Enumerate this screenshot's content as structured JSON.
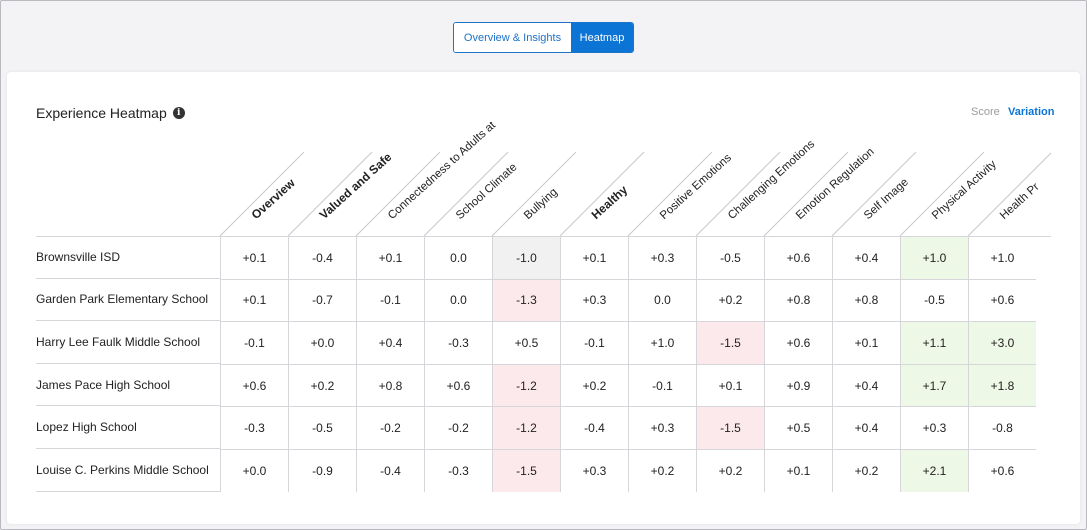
{
  "tabs": {
    "overview": "Overview & Insights",
    "heatmap": "Heatmap"
  },
  "card": {
    "title": "Experience Heatmap",
    "info_icon": "info-icon"
  },
  "mode": {
    "score": "Score",
    "variation": "Variation"
  },
  "columns": [
    {
      "label": "Overview",
      "bold": true
    },
    {
      "label": "Valued and Safe",
      "bold": true
    },
    {
      "label": "Connectedness to Adults at",
      "bold": false
    },
    {
      "label": "School Climate",
      "bold": false
    },
    {
      "label": "Bullying",
      "bold": false
    },
    {
      "label": "Healthy",
      "bold": true
    },
    {
      "label": "Positive Emotions",
      "bold": false
    },
    {
      "label": "Challenging Emotions",
      "bold": false
    },
    {
      "label": "Emotion Regulation",
      "bold": false
    },
    {
      "label": "Self Image",
      "bold": false
    },
    {
      "label": "Physical Activity",
      "bold": false
    },
    {
      "label": "Health Pr",
      "bold": false
    }
  ],
  "rows": [
    {
      "name": "Brownsville ISD",
      "values": [
        "+0.1",
        "-0.4",
        "+0.1",
        "0.0",
        "-1.0",
        "+0.1",
        "+0.3",
        "-0.5",
        "+0.6",
        "+0.4",
        "+1.0",
        "+1.0"
      ],
      "tones": [
        "",
        "",
        "",
        "",
        "neutral",
        "",
        "",
        "",
        "",
        "",
        "pos",
        ""
      ]
    },
    {
      "name": "Garden Park Elementary School",
      "values": [
        "+0.1",
        "-0.7",
        "-0.1",
        "0.0",
        "-1.3",
        "+0.3",
        "0.0",
        "+0.2",
        "+0.8",
        "+0.8",
        "-0.5",
        "+0.6"
      ],
      "tones": [
        "",
        "",
        "",
        "",
        "neg",
        "",
        "",
        "",
        "",
        "",
        "",
        ""
      ]
    },
    {
      "name": "Harry Lee Faulk Middle School",
      "values": [
        "-0.1",
        "+0.0",
        "+0.4",
        "-0.3",
        "+0.5",
        "-0.1",
        "+1.0",
        "-1.5",
        "+0.6",
        "+0.1",
        "+1.1",
        "+3.0"
      ],
      "tones": [
        "",
        "",
        "",
        "",
        "",
        "",
        "",
        "neg",
        "",
        "",
        "pos",
        "pos"
      ]
    },
    {
      "name": "James Pace High School",
      "values": [
        "+0.6",
        "+0.2",
        "+0.8",
        "+0.6",
        "-1.2",
        "+0.2",
        "-0.1",
        "+0.1",
        "+0.9",
        "+0.4",
        "+1.7",
        "+1.8"
      ],
      "tones": [
        "",
        "",
        "",
        "",
        "neg",
        "",
        "",
        "",
        "",
        "",
        "pos",
        "pos"
      ]
    },
    {
      "name": "Lopez High School",
      "values": [
        "-0.3",
        "-0.5",
        "-0.2",
        "-0.2",
        "-1.2",
        "-0.4",
        "+0.3",
        "-1.5",
        "+0.5",
        "+0.4",
        "+0.3",
        "-0.8"
      ],
      "tones": [
        "",
        "",
        "",
        "",
        "neg",
        "",
        "",
        "neg",
        "",
        "",
        "",
        ""
      ]
    },
    {
      "name": "Louise C. Perkins Middle School",
      "values": [
        "+0.0",
        "-0.9",
        "-0.4",
        "-0.3",
        "-1.5",
        "+0.3",
        "+0.2",
        "+0.2",
        "+0.1",
        "+0.2",
        "+2.1",
        "+0.6"
      ],
      "tones": [
        "",
        "",
        "",
        "",
        "neg",
        "",
        "",
        "",
        "",
        "",
        "pos",
        ""
      ]
    }
  ]
}
